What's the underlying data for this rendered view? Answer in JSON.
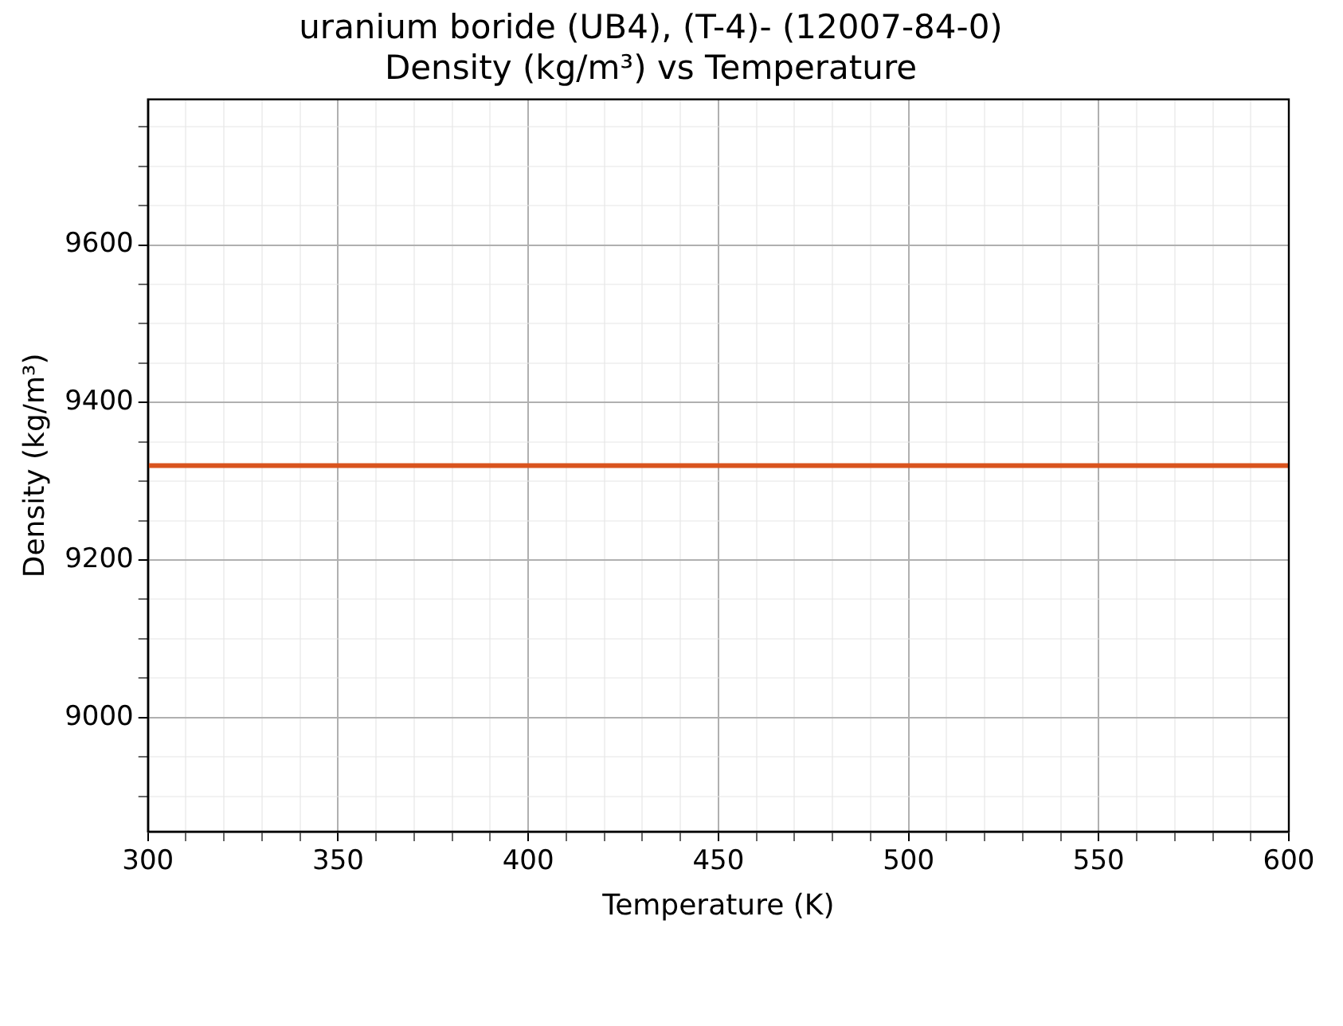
{
  "chart_data": {
    "type": "line",
    "title": [
      "uranium boride (UB4), (T-4)- (12007-84-0)",
      "Density (kg/m³) vs Temperature"
    ],
    "xlabel": "Temperature (K)",
    "ylabel": "Density (kg/m³)",
    "x": [
      300,
      600
    ],
    "series": [
      {
        "color": "#d9541e",
        "values": [
          9320,
          9320
        ]
      }
    ],
    "xlim": [
      300,
      600
    ],
    "ylim": [
      8855,
      9785
    ],
    "xticks": [
      300,
      {
        "value": 310,
        "label": null
      },
      {
        "value": 320,
        "label": null
      },
      {
        "value": 330,
        "label": null
      },
      {
        "value": 340,
        "label": null
      },
      350,
      {
        "value": 360,
        "label": null
      },
      {
        "value": 370,
        "label": null
      },
      {
        "value": 380,
        "label": null
      },
      {
        "value": 390,
        "label": null
      },
      400,
      {
        "value": 410,
        "label": null
      },
      {
        "value": 420,
        "label": null
      },
      {
        "value": 430,
        "label": null
      },
      {
        "value": 440,
        "label": null
      },
      450,
      {
        "value": 460,
        "label": null
      },
      {
        "value": 470,
        "label": null
      },
      {
        "value": 480,
        "label": null
      },
      {
        "value": 490,
        "label": null
      },
      500,
      {
        "value": 510,
        "label": null
      },
      {
        "value": 520,
        "label": null
      },
      {
        "value": 530,
        "label": null
      },
      {
        "value": 540,
        "label": null
      },
      550,
      {
        "value": 560,
        "label": null
      },
      {
        "value": 570,
        "label": null
      },
      {
        "value": 580,
        "label": null
      },
      {
        "value": 590,
        "label": null
      },
      600
    ],
    "yticks": [
      {
        "value": 8900,
        "label": null
      },
      {
        "value": 8950,
        "label": null
      },
      9000,
      {
        "value": 9050,
        "label": null
      },
      {
        "value": 9100,
        "label": null
      },
      {
        "value": 9150,
        "label": null
      },
      9200,
      {
        "value": 9250,
        "label": null
      },
      {
        "value": 9300,
        "label": null
      },
      {
        "value": 9350,
        "label": null
      },
      9400,
      {
        "value": 9450,
        "label": null
      },
      {
        "value": 9500,
        "label": null
      },
      {
        "value": 9550,
        "label": null
      },
      9600,
      {
        "value": 9650,
        "label": null
      },
      {
        "value": 9700,
        "label": null
      },
      {
        "value": 9750,
        "label": null
      }
    ],
    "grid": true,
    "legend": false,
    "marker": "none",
    "line_style": "solid"
  }
}
